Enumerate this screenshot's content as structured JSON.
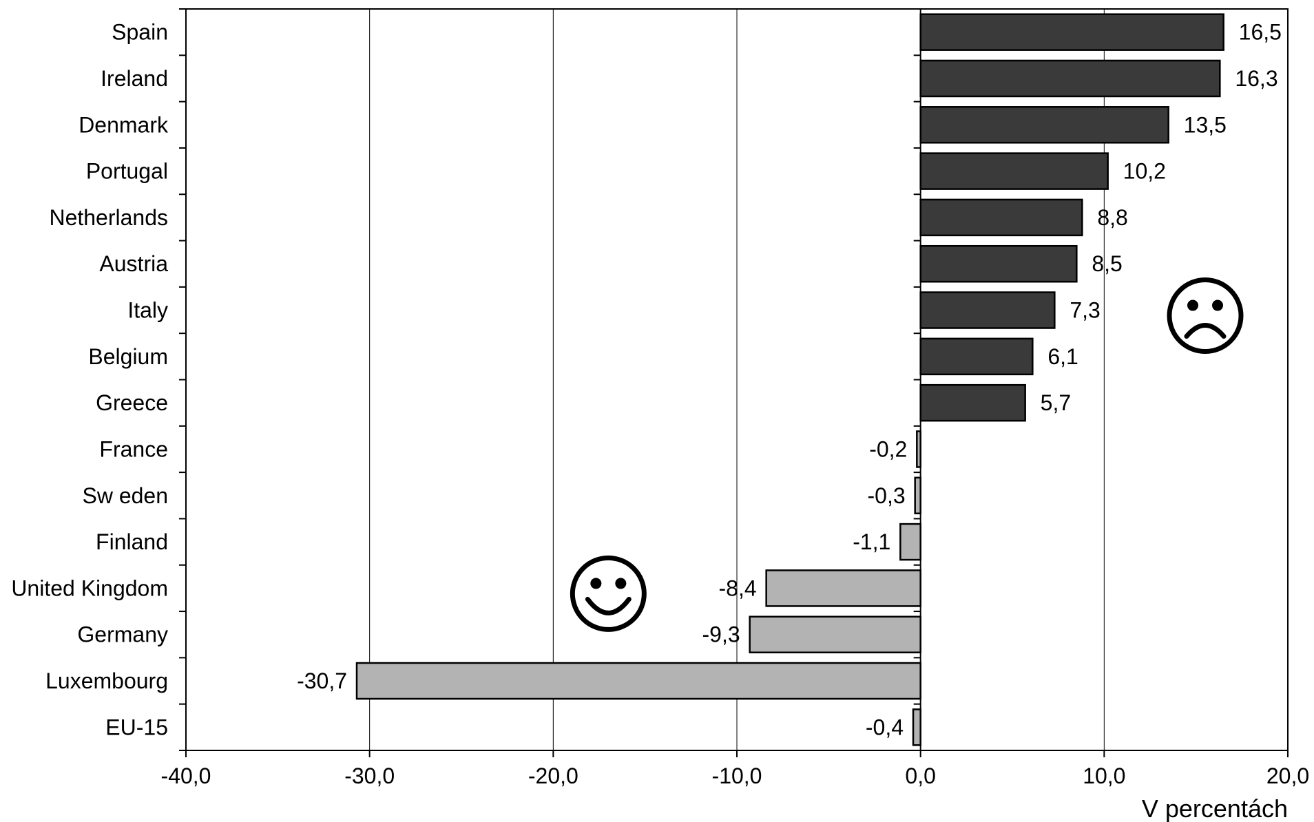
{
  "chart_data": {
    "type": "bar",
    "orientation": "horizontal",
    "categories": [
      "Spain",
      "Ireland",
      "Denmark",
      "Portugal",
      "Netherlands",
      "Austria",
      "Italy",
      "Belgium",
      "Greece",
      "France",
      "Sw eden",
      "Finland",
      "United Kingdom",
      "Germany",
      "Luxembourg",
      "EU-15"
    ],
    "values": [
      16.5,
      16.3,
      13.5,
      10.2,
      8.8,
      8.5,
      7.3,
      6.1,
      5.7,
      -0.2,
      -0.3,
      -1.1,
      -8.4,
      -9.3,
      -30.7,
      -0.4
    ],
    "value_labels": [
      "16,5",
      "16,3",
      "13,5",
      "10,2",
      "8,8",
      "8,5",
      "7,3",
      "6,1",
      "5,7",
      "-0,2",
      "-0,3",
      "-1,1",
      "-8,4",
      "-9,3",
      "-30,7",
      "-0,4"
    ],
    "xlim": [
      -40,
      20
    ],
    "xticks": [
      -40,
      -30,
      -20,
      -10,
      0,
      10,
      20
    ],
    "xtick_labels": [
      "-40,0",
      "-30,0",
      "-20,0",
      "-10,0",
      "0,0",
      "10,0",
      "20,0"
    ],
    "xlabel": "V percentách",
    "grid": "vertical",
    "colors": {
      "positive": "#3a3a3a",
      "negative": "#b3b3b3"
    },
    "annotations": [
      {
        "type": "icon",
        "name": "frowning-face-icon",
        "x": 15.5,
        "category": "Italy"
      },
      {
        "type": "icon",
        "name": "smiling-face-icon",
        "x": -17.0,
        "category": "United Kingdom"
      }
    ]
  }
}
